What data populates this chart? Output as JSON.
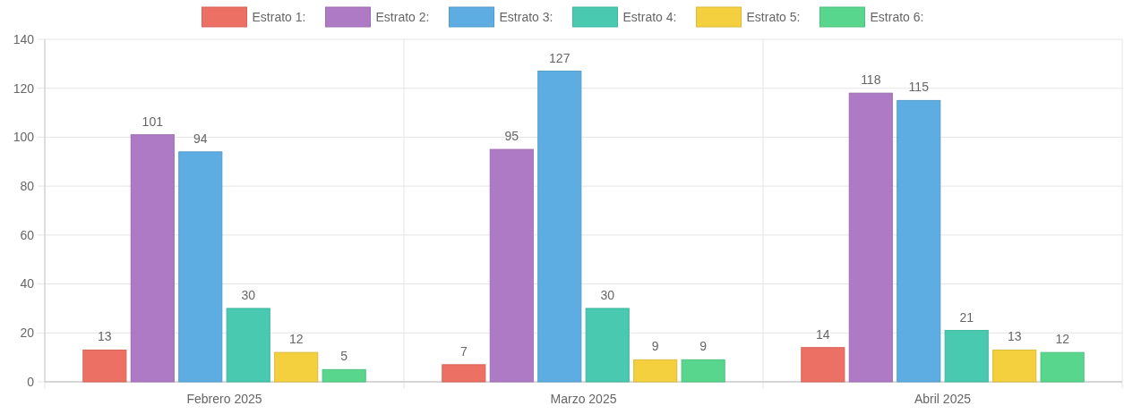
{
  "chart_data": {
    "type": "bar",
    "categories": [
      "Febrero 2025",
      "Marzo 2025",
      "Abril 2025"
    ],
    "series": [
      {
        "name": "Estrato 1:",
        "color": "#ec7063",
        "values": [
          13,
          7,
          14
        ]
      },
      {
        "name": "Estrato 2:",
        "color": "#af7ac5",
        "values": [
          101,
          95,
          118
        ]
      },
      {
        "name": "Estrato 3:",
        "color": "#5dade2",
        "values": [
          94,
          127,
          115
        ]
      },
      {
        "name": "Estrato 4:",
        "color": "#48c9b0",
        "values": [
          30,
          30,
          21
        ]
      },
      {
        "name": "Estrato 5:",
        "color": "#f4d03f",
        "values": [
          12,
          9,
          13
        ]
      },
      {
        "name": "Estrato 6:",
        "color": "#58d68d",
        "values": [
          5,
          9,
          12
        ]
      }
    ],
    "ylim": [
      0,
      140
    ],
    "yticks": [
      0,
      20,
      40,
      60,
      80,
      100,
      120,
      140
    ],
    "grid": true,
    "legend": "top",
    "data_labels": true
  }
}
